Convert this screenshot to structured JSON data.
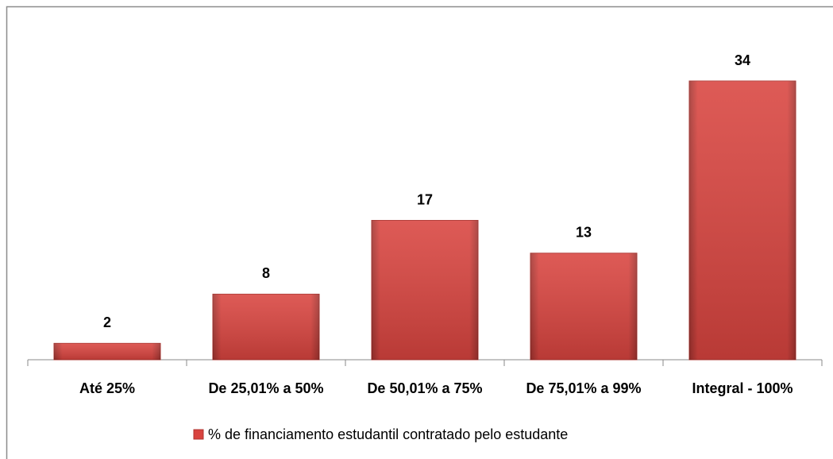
{
  "chart_data": {
    "type": "bar",
    "categories": [
      "Até 25%",
      "De 25,01% a 50%",
      "De 50,01% a 75%",
      "De 75,01% a 99%",
      "Integral - 100%"
    ],
    "series": [
      {
        "name": "% de financiamento estudantil contratado pelo estudante",
        "color": "#d9443f",
        "values": [
          2,
          8,
          17,
          13,
          34
        ]
      }
    ],
    "legend": "bottom"
  }
}
